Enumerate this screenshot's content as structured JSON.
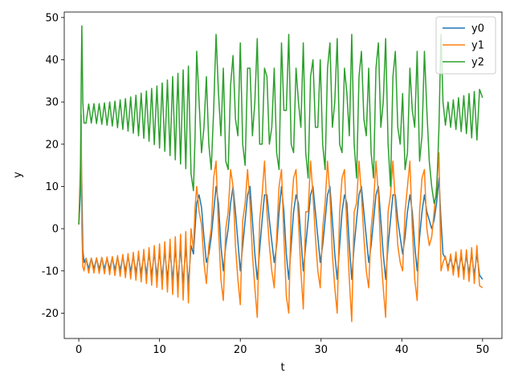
{
  "chart_data": {
    "type": "line",
    "xlabel": "t",
    "ylabel": "y",
    "x": [
      0,
      0.2,
      0.3,
      0.38,
      0.5,
      0.65,
      0.9,
      1.225,
      1.55,
      1.875,
      2.2,
      2.525,
      2.85,
      3.175,
      3.5,
      3.825,
      4.15,
      4.475,
      4.8,
      5.125,
      5.45,
      5.775,
      6.1,
      6.425,
      6.75,
      7.075,
      7.4,
      7.725,
      8.05,
      8.375,
      8.7,
      9.025,
      9.35,
      9.675,
      10,
      10.325,
      10.65,
      10.975,
      11.3,
      11.625,
      11.95,
      12.275,
      12.6,
      12.925,
      13.25,
      13.575,
      13.9,
      14.2,
      14.4,
      14.6,
      14.9,
      15.2,
      15.5,
      15.8,
      16.1,
      16.4,
      16.7,
      17.0,
      17.3,
      17.6,
      17.9,
      18.2,
      18.5,
      18.8,
      19.1,
      19.4,
      19.7,
      20.0,
      20.3,
      20.6,
      20.9,
      21.2,
      21.5,
      21.8,
      22.1,
      22.4,
      22.7,
      23.0,
      23.3,
      23.6,
      23.9,
      24.2,
      24.5,
      24.8,
      25.1,
      25.4,
      25.7,
      26.0,
      26.3,
      26.6,
      26.9,
      27.2,
      27.5,
      27.8,
      28.1,
      28.4,
      28.7,
      29.0,
      29.3,
      29.6,
      29.9,
      30.2,
      30.5,
      30.8,
      31.1,
      31.4,
      31.7,
      32.0,
      32.3,
      32.6,
      32.9,
      33.2,
      33.5,
      33.8,
      34.1,
      34.4,
      34.7,
      35.0,
      35.3,
      35.6,
      35.9,
      36.2,
      36.5,
      36.8,
      37.1,
      37.4,
      37.7,
      38.0,
      38.3,
      38.6,
      38.9,
      39.2,
      39.5,
      39.8,
      40.1,
      40.4,
      40.7,
      41.0,
      41.3,
      41.6,
      41.9,
      42.2,
      42.5,
      42.8,
      43.1,
      43.4,
      43.7,
      44.0,
      44.3,
      44.6,
      44.85,
      45.1,
      45.4,
      45.725,
      46.05,
      46.375,
      46.7,
      47.025,
      47.35,
      47.675,
      48.0,
      48.325,
      48.65,
      48.975,
      49.3,
      49.625,
      50.0
    ],
    "series": [
      {
        "name": "y0",
        "color": "#1f77b4",
        "values": [
          1,
          8,
          18,
          10,
          -5,
          -8,
          -7,
          -9.5,
          -7,
          -9.5,
          -7,
          -9.6,
          -6.9,
          -9.6,
          -6.9,
          -9.7,
          -6.8,
          -9.8,
          -6.7,
          -9.9,
          -6.6,
          -10.1,
          -6.5,
          -10.2,
          -6.4,
          -10.4,
          -6.3,
          -10.6,
          -6.1,
          -10.8,
          -5.9,
          -11.1,
          -5.7,
          -11.3,
          -5.5,
          -11.6,
          -5.3,
          -11.9,
          -5.1,
          -12.2,
          -4.8,
          -12.6,
          -4.6,
          -12.9,
          -4.3,
          -13.3,
          -4.0,
          -6,
          0,
          6,
          8,
          5,
          -2,
          -8,
          -6,
          -2,
          4,
          10,
          6,
          -4,
          -10,
          -4,
          0,
          6,
          10,
          4,
          -3,
          -10,
          -4,
          2,
          8,
          10,
          2,
          -6,
          -12,
          -5,
          2,
          8,
          8,
          2,
          -3,
          -8,
          -4,
          4,
          10,
          4,
          -6,
          -12,
          -4,
          4,
          8,
          6,
          -2,
          -10,
          -4,
          2,
          8,
          10,
          4,
          -2,
          -8,
          -4,
          2,
          8,
          10,
          2,
          -6,
          -12,
          -4,
          4,
          8,
          6,
          -4,
          -12,
          -4,
          2,
          8,
          10,
          4,
          -2,
          -8,
          -4,
          2,
          8,
          10,
          2,
          -6,
          -12,
          -4,
          2,
          8,
          8,
          2,
          -2,
          -6,
          -2,
          4,
          8,
          4,
          -4,
          -10,
          -2,
          4,
          8,
          4,
          2,
          0,
          2,
          6,
          12,
          2,
          -6,
          -7,
          -9,
          -7,
          -9.5,
          -7,
          -10,
          -6.5,
          -10,
          -6.5,
          -10.5,
          -6,
          -11,
          -6,
          -11,
          -12
        ]
      },
      {
        "name": "y1",
        "color": "#ff7f0e",
        "values": [
          1,
          15,
          27,
          0,
          -9,
          -10,
          -7,
          -10.5,
          -7,
          -10.5,
          -6.9,
          -10.6,
          -6.8,
          -10.7,
          -6.7,
          -10.9,
          -6.6,
          -11.1,
          -6.4,
          -11.3,
          -6.1,
          -11.6,
          -5.9,
          -11.9,
          -5.6,
          -12.2,
          -5.3,
          -12.6,
          -4.9,
          -13,
          -4.5,
          -13.4,
          -4,
          -13.9,
          -3.6,
          -14.4,
          -3.1,
          -15,
          -2.5,
          -15.6,
          -1.9,
          -16.2,
          -1.3,
          -16.9,
          -0.7,
          -17.6,
          0,
          -5,
          5,
          10,
          4,
          1,
          -8,
          -13,
          -4,
          0,
          12,
          16,
          0,
          -12,
          -17,
          0,
          4,
          14,
          10,
          -4,
          -12,
          -18,
          2,
          6,
          14,
          6,
          -6,
          -14,
          -21,
          2,
          8,
          16,
          4,
          -4,
          -10,
          -14,
          -2,
          10,
          14,
          -2,
          -16,
          -20,
          4,
          12,
          14,
          2,
          -10,
          -19,
          4,
          4,
          16,
          8,
          -2,
          -10,
          -14,
          0,
          6,
          16,
          8,
          -6,
          -14,
          -20,
          4,
          12,
          14,
          0,
          -12,
          -22,
          4,
          6,
          16,
          8,
          -2,
          -10,
          -14,
          0,
          6,
          16,
          8,
          -6,
          -14,
          -21,
          4,
          8,
          16,
          6,
          -4,
          -8,
          -10,
          4,
          10,
          16,
          0,
          -12,
          -17,
          4,
          12,
          14,
          0,
          -4,
          -2,
          4,
          10,
          18,
          -10,
          -8,
          -6.5,
          -10,
          -6,
          -11,
          -5.5,
          -11.5,
          -5,
          -12,
          -5,
          -12.5,
          -4.5,
          -13,
          -4,
          -13.5,
          -14
        ]
      },
      {
        "name": "y2",
        "color": "#2ca02c",
        "values": [
          1,
          10,
          35,
          48,
          30,
          25,
          25,
          29.5,
          25,
          29.6,
          24.9,
          29.6,
          24.7,
          29.8,
          24.5,
          30,
          24.3,
          30.2,
          23.9,
          30.5,
          23.5,
          30.8,
          23.1,
          31.2,
          22.6,
          31.6,
          22,
          32.1,
          21.4,
          32.6,
          20.7,
          33.2,
          19.9,
          33.8,
          19.1,
          34.5,
          18.3,
          35.2,
          17.3,
          36,
          16.3,
          36.8,
          15.3,
          37.6,
          14.2,
          38.5,
          13,
          9,
          22,
          42,
          30,
          18,
          24,
          36,
          20,
          14,
          28,
          46,
          32,
          22,
          38,
          16,
          14,
          34,
          41,
          26,
          22,
          44,
          20,
          15,
          38,
          38,
          22,
          30,
          45,
          20,
          20,
          38,
          36,
          20,
          24,
          38,
          18,
          14,
          44,
          28,
          28,
          46,
          20,
          18,
          38,
          30,
          24,
          44,
          18,
          12,
          36,
          40,
          24,
          24,
          40,
          20,
          14,
          38,
          44,
          24,
          30,
          45,
          20,
          18,
          38,
          32,
          22,
          46,
          20,
          12,
          36,
          42,
          26,
          22,
          38,
          18,
          12,
          38,
          44,
          24,
          30,
          45,
          20,
          10,
          36,
          42,
          24,
          20,
          32,
          14,
          18,
          38,
          28,
          24,
          42,
          16,
          22,
          42,
          28,
          16,
          10,
          6,
          8,
          24,
          46,
          30,
          24.5,
          30,
          24,
          30.5,
          23.5,
          31,
          23,
          31.5,
          22.5,
          32,
          21.5,
          32.5,
          21,
          33,
          31
        ]
      }
    ],
    "xlim": [
      -1.8,
      52.4
    ],
    "ylim": [
      -26,
      51.3
    ],
    "xticks": [
      0,
      10,
      20,
      30,
      40,
      50
    ],
    "yticks": [
      -20,
      -10,
      0,
      10,
      20,
      30,
      40,
      50
    ],
    "grid": false,
    "legend": "upper right"
  }
}
